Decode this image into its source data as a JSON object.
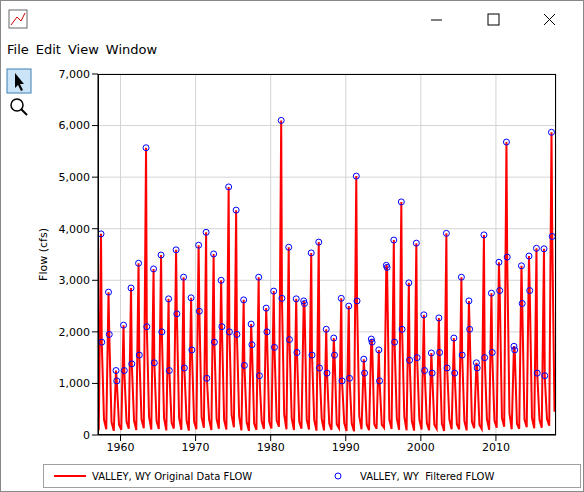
{
  "window": {
    "menu": [
      "File",
      "Edit",
      "View",
      "Window"
    ]
  },
  "chart_data": {
    "type": "line",
    "ylabel": "Flow (cfs)",
    "grid": true,
    "legend": "bottom",
    "xlim": [
      1957,
      2018
    ],
    "xticks": [
      1960,
      1970,
      1980,
      1990,
      2000,
      2010
    ],
    "ylim": [
      0,
      7000
    ],
    "yticks": [
      0,
      {
        "value": 1000,
        "label": "1,000"
      },
      {
        "value": 2000,
        "label": "2,000"
      },
      {
        "value": 3000,
        "label": "3,000"
      },
      {
        "value": 4000,
        "label": "4,000"
      },
      {
        "value": 5000,
        "label": "5,000"
      },
      {
        "value": 6000,
        "label": "6,000"
      },
      {
        "value": 7000,
        "label": "7,000"
      }
    ],
    "series": [
      {
        "name": "VALLEY, WY Original Data FLOW",
        "color": "#ff0000",
        "type": "line",
        "x": [
          1957.1,
          1957.4,
          1957.5,
          1957.8,
          1958.1,
          1958.4,
          1958.5,
          1958.8,
          1959.1,
          1959.4,
          1959.5,
          1959.8,
          1960.1,
          1960.4,
          1960.5,
          1960.8,
          1961.1,
          1961.4,
          1961.5,
          1961.8,
          1962.1,
          1962.4,
          1962.5,
          1962.8,
          1963.1,
          1963.4,
          1963.5,
          1963.8,
          1964.1,
          1964.4,
          1964.5,
          1964.8,
          1965.1,
          1965.4,
          1965.5,
          1965.8,
          1966.1,
          1966.4,
          1966.5,
          1966.8,
          1967.1,
          1967.4,
          1967.5,
          1967.8,
          1968.1,
          1968.4,
          1968.5,
          1968.8,
          1969.1,
          1969.4,
          1969.5,
          1969.8,
          1970.1,
          1970.4,
          1970.5,
          1970.8,
          1971.1,
          1971.4,
          1971.5,
          1971.8,
          1972.1,
          1972.4,
          1972.5,
          1972.8,
          1973.1,
          1973.4,
          1973.5,
          1973.8,
          1974.1,
          1974.4,
          1974.5,
          1974.8,
          1975.1,
          1975.4,
          1975.5,
          1975.8,
          1976.1,
          1976.4,
          1976.5,
          1976.8,
          1977.1,
          1977.4,
          1977.5,
          1977.8,
          1978.1,
          1978.4,
          1978.5,
          1978.8,
          1979.1,
          1979.4,
          1979.5,
          1979.8,
          1980.1,
          1980.4,
          1980.5,
          1980.8,
          1981.1,
          1981.4,
          1981.5,
          1981.8,
          1982.1,
          1982.4,
          1982.5,
          1982.8,
          1983.1,
          1983.4,
          1983.5,
          1983.8,
          1984.1,
          1984.4,
          1984.5,
          1984.8,
          1985.1,
          1985.4,
          1985.5,
          1985.8,
          1986.1,
          1986.4,
          1986.5,
          1986.8,
          1987.1,
          1987.4,
          1987.5,
          1987.8,
          1988.1,
          1988.4,
          1988.5,
          1988.8,
          1989.1,
          1989.4,
          1989.5,
          1989.8,
          1990.1,
          1990.4,
          1990.5,
          1990.8,
          1991.1,
          1991.4,
          1991.5,
          1991.8,
          1992.1,
          1992.4,
          1992.5,
          1992.8,
          1993.1,
          1993.4,
          1993.5,
          1993.8,
          1994.1,
          1994.4,
          1994.5,
          1994.8,
          1995.1,
          1995.4,
          1995.5,
          1995.8,
          1996.1,
          1996.4,
          1996.5,
          1996.8,
          1997.1,
          1997.4,
          1997.5,
          1997.8,
          1998.1,
          1998.4,
          1998.5,
          1998.8,
          1999.1,
          1999.4,
          1999.5,
          1999.8,
          2000.1,
          2000.4,
          2000.5,
          2000.8,
          2001.1,
          2001.4,
          2001.5,
          2001.8,
          2002.1,
          2002.4,
          2002.5,
          2002.8,
          2003.1,
          2003.4,
          2003.5,
          2003.8,
          2004.1,
          2004.4,
          2004.5,
          2004.8,
          2005.1,
          2005.4,
          2005.5,
          2005.8,
          2006.1,
          2006.4,
          2006.5,
          2006.8,
          2007.1,
          2007.4,
          2007.5,
          2007.8,
          2008.1,
          2008.4,
          2008.5,
          2008.8,
          2009.1,
          2009.4,
          2009.5,
          2009.8,
          2010.1,
          2010.4,
          2010.5,
          2010.8,
          2011.1,
          2011.4,
          2011.5,
          2011.8,
          2012.1,
          2012.4,
          2012.5,
          2012.8,
          2013.1,
          2013.4,
          2013.5,
          2013.8,
          2014.1,
          2014.4,
          2014.5,
          2014.8,
          2015.1,
          2015.4,
          2015.5,
          2015.8,
          2016.1,
          2016.4,
          2016.5,
          2016.8,
          2017.1,
          2017.4,
          2017.5,
          2017.8
        ],
        "values": [
          90,
          3900,
          1800,
          300,
          110,
          2770,
          1950,
          250,
          80,
          1250,
          1050,
          200,
          100,
          2130,
          1250,
          260,
          120,
          2850,
          1380,
          280,
          95,
          3330,
          1550,
          300,
          130,
          5570,
          2100,
          350,
          105,
          3220,
          1400,
          270,
          115,
          3490,
          2000,
          320,
          90,
          2640,
          1250,
          240,
          125,
          3590,
          2350,
          330,
          100,
          3060,
          1300,
          280,
          85,
          2660,
          1650,
          260,
          110,
          3680,
          2400,
          340,
          140,
          3930,
          1100,
          300,
          95,
          3510,
          1800,
          310,
          120,
          3000,
          2100,
          290,
          105,
          4810,
          2000,
          380,
          150,
          4360,
          1950,
          360,
          90,
          2620,
          1350,
          250,
          80,
          2150,
          1750,
          220,
          100,
          3060,
          1150,
          270,
          115,
          2460,
          2000,
          260,
          125,
          2790,
          1700,
          280,
          160,
          6100,
          2650,
          400,
          110,
          3640,
          1850,
          320,
          95,
          2640,
          1600,
          260,
          120,
          2600,
          2550,
          300,
          105,
          3530,
          1550,
          290,
          85,
          3740,
          1300,
          310,
          90,
          2050,
          1200,
          220,
          100,
          1880,
          1550,
          210,
          130,
          2650,
          1050,
          230,
          80,
          2500,
          1100,
          220,
          75,
          5020,
          2600,
          360,
          110,
          1470,
          1200,
          200,
          95,
          1860,
          1800,
          210,
          120,
          1650,
          1050,
          200,
          140,
          3290,
          3250,
          300,
          115,
          3780,
          1800,
          320,
          100,
          4520,
          2050,
          350,
          90,
          2950,
          1450,
          270,
          85,
          3720,
          1500,
          300,
          105,
          2330,
          1250,
          230,
          95,
          1590,
          1200,
          200,
          120,
          2270,
          1600,
          220,
          80,
          3910,
          1300,
          300,
          110,
          1880,
          1200,
          210,
          110,
          3060,
          1550,
          270,
          90,
          2600,
          2050,
          260,
          130,
          1400,
          1300,
          200,
          120,
          3880,
          1500,
          310,
          100,
          2750,
          1600,
          280,
          140,
          3350,
          2800,
          330,
          160,
          5680,
          3450,
          420,
          110,
          1720,
          1650,
          220,
          120,
          3280,
          2550,
          300,
          150,
          3470,
          2800,
          330,
          130,
          3620,
          1200,
          300,
          140,
          3610,
          1150,
          310,
          180,
          5870,
          3850,
          450
        ]
      },
      {
        "name": "VALLEY, WY  Filtered FLOW",
        "color": "#0000ff",
        "type": "scatter",
        "marker": "circle",
        "x": [
          1957.4,
          1957.5,
          1958.4,
          1958.5,
          1959.4,
          1959.5,
          1960.4,
          1960.5,
          1961.4,
          1961.5,
          1962.4,
          1962.5,
          1963.4,
          1963.5,
          1964.4,
          1964.5,
          1965.4,
          1965.5,
          1966.4,
          1966.5,
          1967.4,
          1967.5,
          1968.4,
          1968.5,
          1969.4,
          1969.5,
          1970.4,
          1970.5,
          1971.4,
          1971.5,
          1972.4,
          1972.5,
          1973.4,
          1973.5,
          1974.4,
          1974.5,
          1975.4,
          1975.5,
          1976.4,
          1976.5,
          1977.4,
          1977.5,
          1978.4,
          1978.5,
          1979.4,
          1979.5,
          1980.4,
          1980.5,
          1981.4,
          1981.5,
          1982.4,
          1982.5,
          1983.4,
          1983.5,
          1984.4,
          1984.5,
          1985.4,
          1985.5,
          1986.4,
          1986.5,
          1987.4,
          1987.5,
          1988.4,
          1988.5,
          1989.4,
          1989.5,
          1990.4,
          1990.5,
          1991.4,
          1991.5,
          1992.4,
          1992.5,
          1993.4,
          1993.5,
          1994.4,
          1994.5,
          1995.4,
          1995.5,
          1996.4,
          1996.5,
          1997.4,
          1997.5,
          1998.4,
          1998.5,
          1999.4,
          1999.5,
          2000.4,
          2000.5,
          2001.4,
          2001.5,
          2002.4,
          2002.5,
          2003.4,
          2003.5,
          2004.4,
          2004.5,
          2005.4,
          2005.5,
          2006.4,
          2006.5,
          2007.4,
          2007.5,
          2008.4,
          2008.5,
          2009.4,
          2009.5,
          2010.4,
          2010.5,
          2011.4,
          2011.5,
          2012.4,
          2012.5,
          2013.4,
          2013.5,
          2014.4,
          2014.5,
          2015.4,
          2015.5,
          2016.4,
          2016.5,
          2017.4,
          2017.5
        ],
        "values": [
          3900,
          1800,
          2770,
          1950,
          1250,
          1050,
          2130,
          1250,
          2850,
          1380,
          3330,
          1550,
          5570,
          2100,
          3220,
          1400,
          3490,
          2000,
          2640,
          1250,
          3590,
          2350,
          3060,
          1300,
          2660,
          1650,
          3680,
          2400,
          3930,
          1100,
          3510,
          1800,
          3000,
          2100,
          4810,
          2000,
          4360,
          1950,
          2620,
          1350,
          2150,
          1750,
          3060,
          1150,
          2460,
          2000,
          2790,
          1700,
          6100,
          2650,
          3640,
          1850,
          2640,
          1600,
          2600,
          2550,
          3530,
          1550,
          3740,
          1300,
          2050,
          1200,
          1880,
          1550,
          2650,
          1050,
          2500,
          1100,
          5020,
          2600,
          1470,
          1200,
          1860,
          1800,
          1650,
          1050,
          3290,
          3250,
          3780,
          1800,
          4520,
          2050,
          2950,
          1450,
          3720,
          1500,
          2330,
          1250,
          1590,
          1200,
          2270,
          1600,
          3910,
          1300,
          1880,
          1200,
          3060,
          1550,
          2600,
          2050,
          1400,
          1300,
          3880,
          1500,
          2750,
          1600,
          3350,
          2800,
          5680,
          3450,
          1720,
          1650,
          3280,
          2550,
          3470,
          2800,
          3620,
          1200,
          3610,
          1150,
          5870,
          3850
        ]
      }
    ]
  }
}
